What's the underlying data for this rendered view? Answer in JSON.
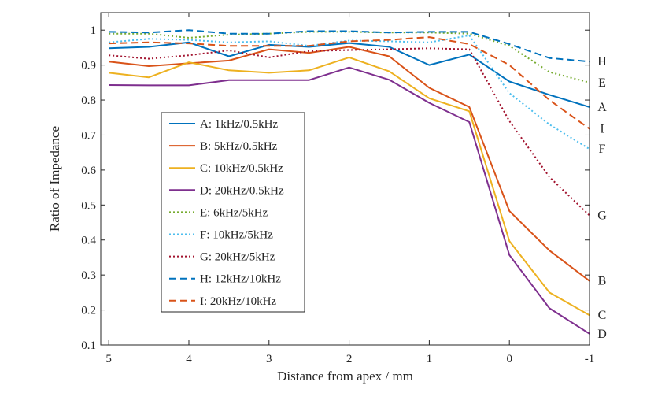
{
  "chart_data": {
    "type": "line",
    "xlabel": "Distance from apex / mm",
    "ylabel": "Ratio of Impedance",
    "xlim": [
      5.1,
      -1.0
    ],
    "ylim": [
      0.1,
      1.05
    ],
    "x_ticks": [
      5,
      4,
      3,
      2,
      1,
      0,
      -1
    ],
    "x_tick_labels": [
      "5",
      "4",
      "3",
      "2",
      "1",
      "0",
      "-1"
    ],
    "y_ticks": [
      0.1,
      0.2,
      0.3,
      0.4,
      0.5,
      0.6,
      0.7,
      0.8,
      0.9,
      1
    ],
    "y_tick_labels": [
      "0.1",
      "0.2",
      "0.3",
      "0.4",
      "0.5",
      "0.6",
      "0.7",
      "0.8",
      "0.9",
      "1"
    ],
    "grid": false,
    "legend_position": "inside-left",
    "x": [
      5,
      4.5,
      4,
      3.5,
      3,
      2.5,
      2,
      1.5,
      1,
      0.5,
      0,
      -0.5,
      -1
    ],
    "series": [
      {
        "name": "A: 1kHz/0.5kHz",
        "end_label": "A",
        "color": "#0072BD",
        "style": "solid",
        "values": [
          0.948,
          0.952,
          0.965,
          0.925,
          0.958,
          0.952,
          0.963,
          0.952,
          0.9,
          0.93,
          0.853,
          0.815,
          0.78
        ]
      },
      {
        "name": "B: 5kHz/0.5kHz",
        "end_label": "B",
        "color": "#D95319",
        "style": "solid",
        "values": [
          0.91,
          0.897,
          0.905,
          0.913,
          0.945,
          0.935,
          0.952,
          0.925,
          0.835,
          0.78,
          0.483,
          0.37,
          0.283
        ]
      },
      {
        "name": "C: 10kHz/0.5kHz",
        "end_label": "C",
        "color": "#EDB120",
        "style": "solid",
        "values": [
          0.878,
          0.865,
          0.908,
          0.885,
          0.878,
          0.885,
          0.922,
          0.882,
          0.805,
          0.768,
          0.397,
          0.25,
          0.185
        ]
      },
      {
        "name": "D: 20kHz/0.5kHz",
        "end_label": "D",
        "color": "#7E2F8E",
        "style": "solid",
        "values": [
          0.843,
          0.842,
          0.842,
          0.857,
          0.857,
          0.857,
          0.893,
          0.858,
          0.792,
          0.737,
          0.357,
          0.205,
          0.132
        ]
      },
      {
        "name": "E: 6kHz/5kHz",
        "end_label": "E",
        "color": "#77AC30",
        "style": "dotted",
        "values": [
          0.99,
          0.99,
          0.978,
          0.987,
          0.99,
          0.995,
          0.995,
          0.993,
          0.993,
          0.99,
          0.955,
          0.88,
          0.85
        ]
      },
      {
        "name": "F: 10kHz/5kHz",
        "end_label": "F",
        "color": "#4DBEEE",
        "style": "dotted",
        "values": [
          0.965,
          0.975,
          0.972,
          0.965,
          0.968,
          0.955,
          0.97,
          0.968,
          0.965,
          0.985,
          0.82,
          0.73,
          0.66
        ]
      },
      {
        "name": "G: 20kHz/5kHz",
        "end_label": "G",
        "color": "#A2142F",
        "style": "dotted",
        "values": [
          0.928,
          0.918,
          0.928,
          0.942,
          0.922,
          0.94,
          0.943,
          0.945,
          0.948,
          0.945,
          0.74,
          0.58,
          0.47
        ]
      },
      {
        "name": "H: 12kHz/10kHz",
        "end_label": "H",
        "color": "#0072BD",
        "style": "dashed",
        "values": [
          0.995,
          0.993,
          1.0,
          0.99,
          0.99,
          0.997,
          0.997,
          0.993,
          0.995,
          0.995,
          0.96,
          0.92,
          0.91
        ]
      },
      {
        "name": "I: 20kHz/10kHz",
        "end_label": "I",
        "color": "#D95319",
        "style": "dashed",
        "values": [
          0.962,
          0.965,
          0.962,
          0.955,
          0.955,
          0.955,
          0.968,
          0.972,
          0.98,
          0.96,
          0.9,
          0.8,
          0.718
        ]
      }
    ]
  }
}
